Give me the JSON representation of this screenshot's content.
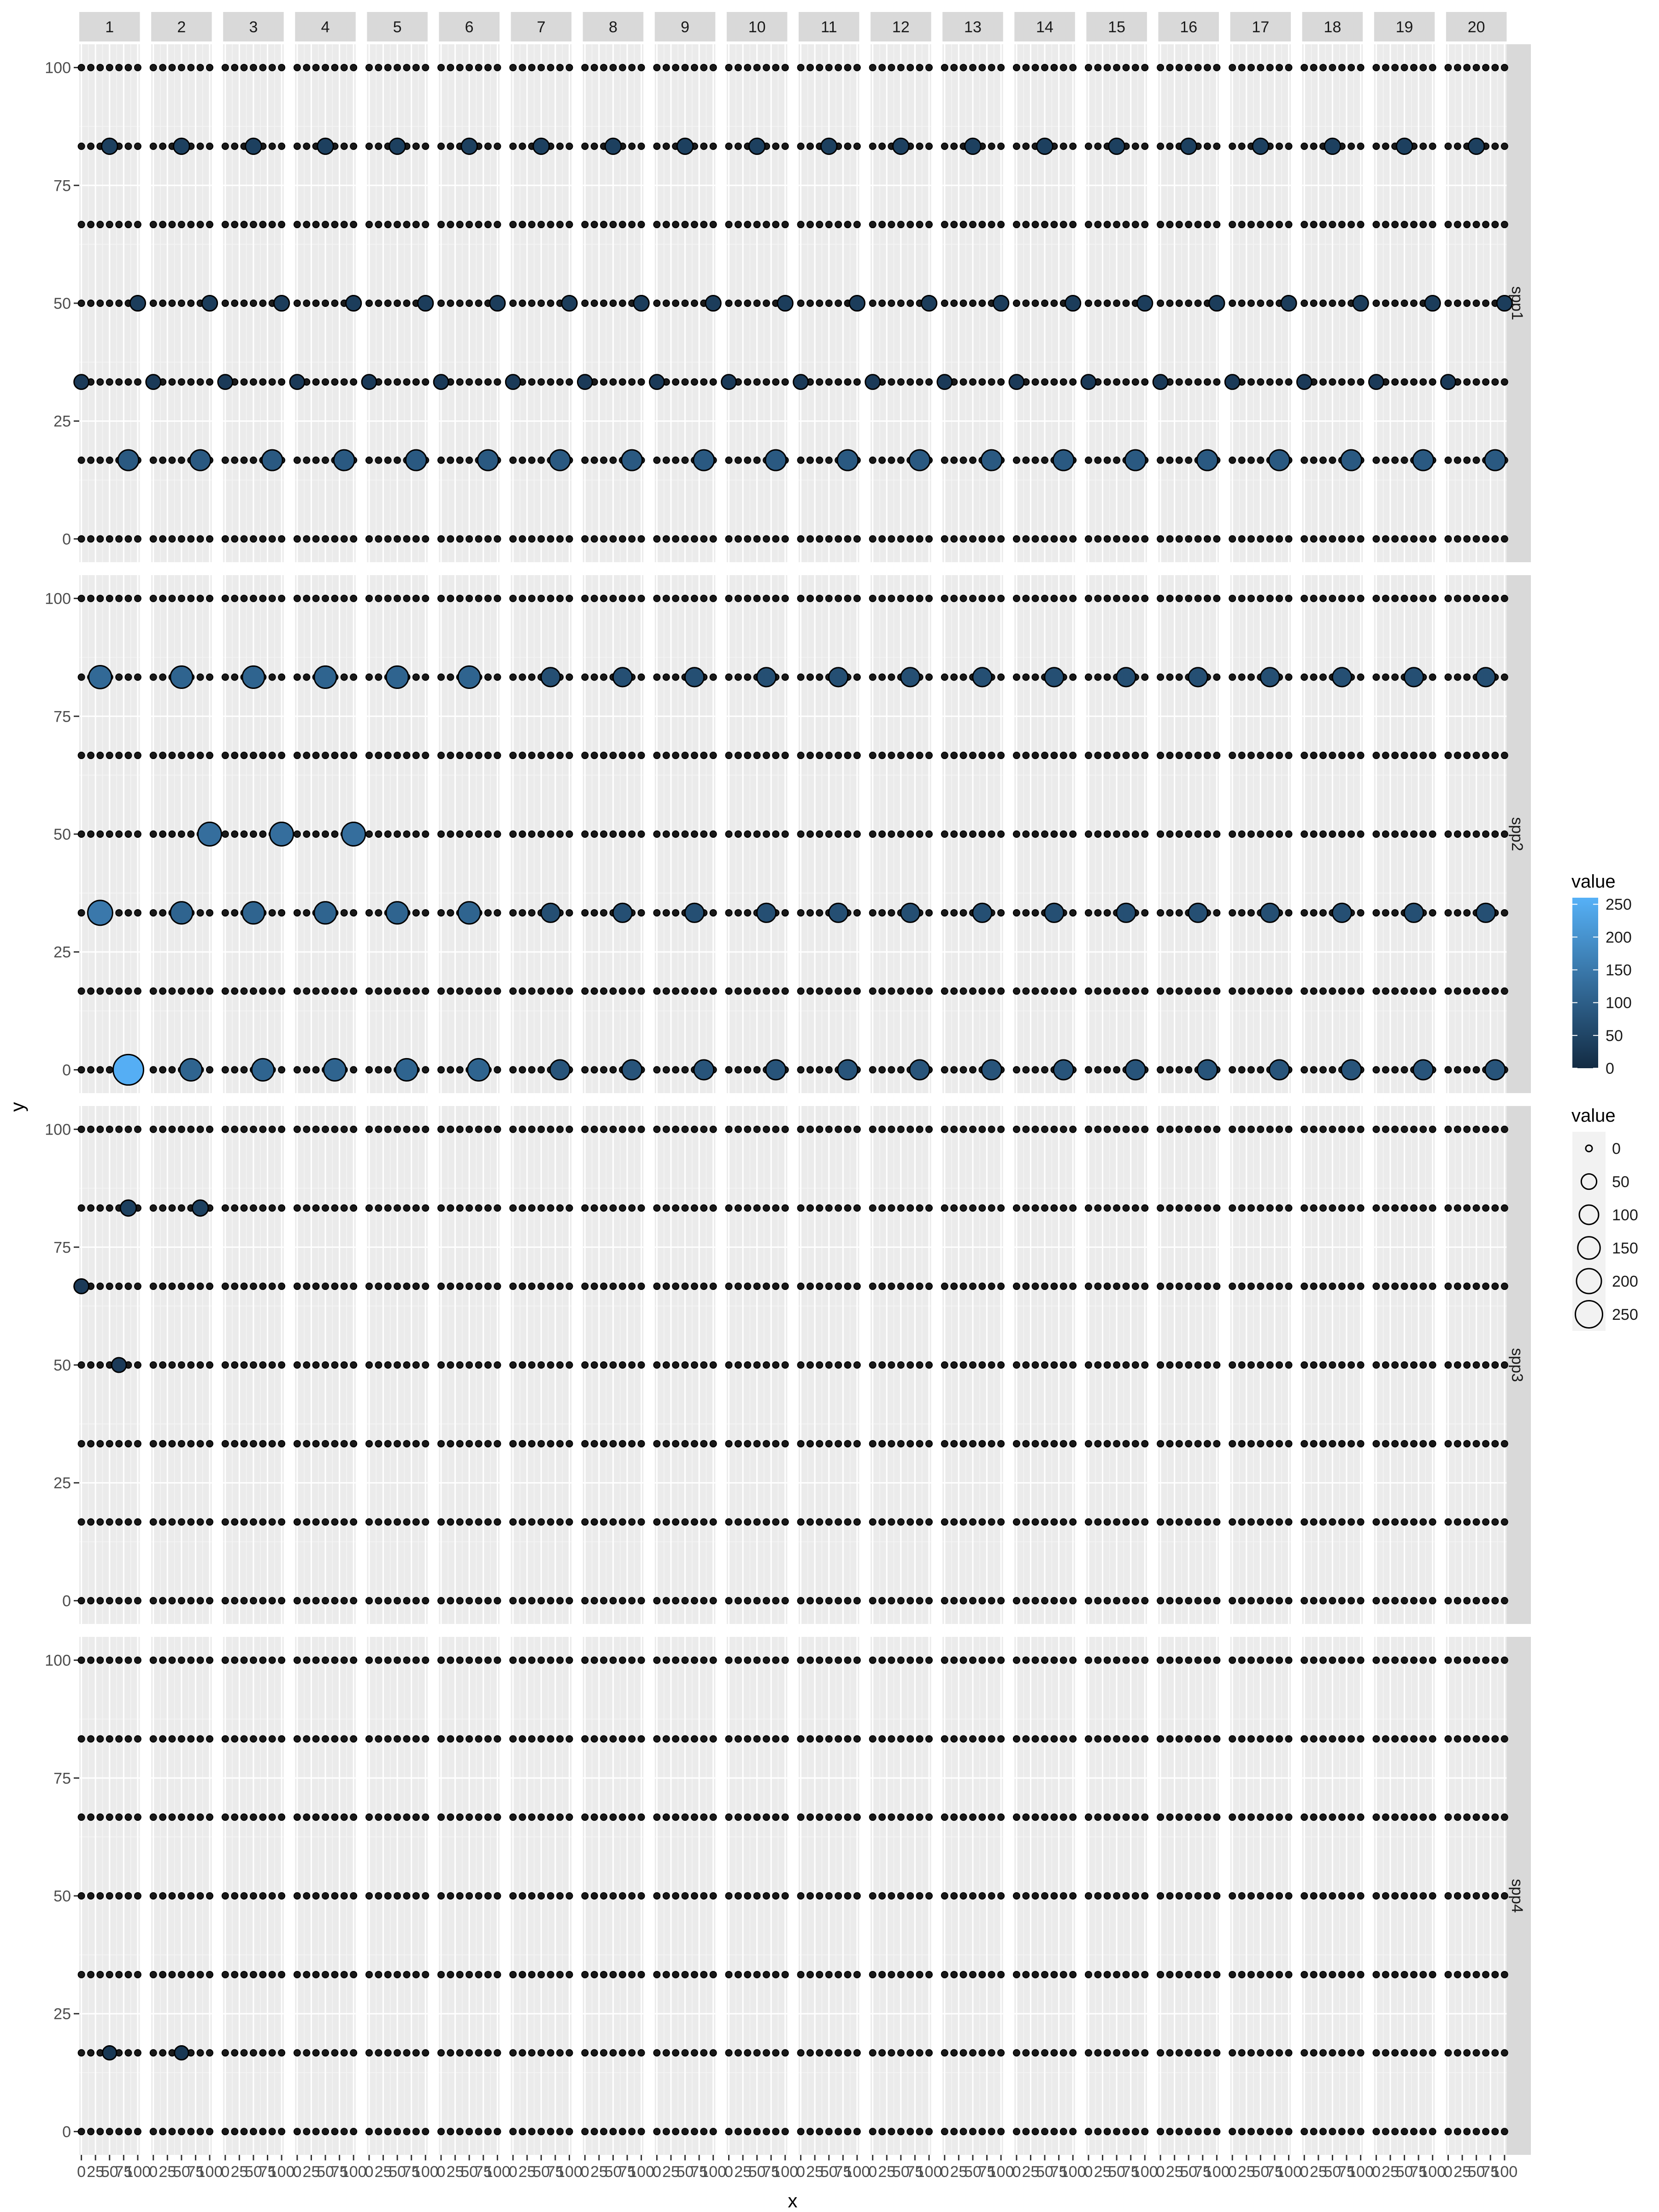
{
  "chart_data": {
    "type": "scatter",
    "facet_columns": [
      "1",
      "2",
      "3",
      "4",
      "5",
      "6",
      "7",
      "8",
      "9",
      "10",
      "11",
      "12",
      "13",
      "14",
      "15",
      "16",
      "17",
      "18",
      "19",
      "20"
    ],
    "facet_rows": [
      "spp1",
      "spp2",
      "spp3",
      "spp4"
    ],
    "xlabel": "x",
    "ylabel": "y",
    "x_ticks": [
      0,
      25,
      50,
      75,
      100
    ],
    "x_tick_labels": [
      "0",
      "25",
      "50",
      "75",
      "100"
    ],
    "xlim": [
      0,
      100
    ],
    "y_ticks": [
      0,
      25,
      50,
      75,
      100
    ],
    "y_tick_labels": [
      "0",
      "25",
      "50",
      "75",
      "100"
    ],
    "ylim": [
      0,
      100
    ],
    "grid": true,
    "point_x": [
      0,
      16.7,
      33.3,
      50,
      66.7,
      83.3,
      100
    ],
    "point_y": [
      0,
      16.7,
      33.3,
      50,
      66.7,
      83.3,
      100
    ],
    "point_fill": "#1a1a1a",
    "point_stroke": "#000000",
    "highlights": {
      "spp1": [
        {
          "x": 50,
          "y": 83.3,
          "value": 40,
          "facets": [
            1,
            2,
            3,
            4,
            5,
            6,
            7,
            8,
            9,
            10,
            11,
            12,
            13,
            14,
            15,
            16,
            17,
            18,
            19,
            20
          ]
        },
        {
          "x": 83.3,
          "y": 16.7,
          "value": 90,
          "facets": [
            1,
            2,
            3,
            4,
            5,
            6,
            7,
            8,
            9,
            10,
            11,
            12,
            13,
            14,
            15,
            16,
            17,
            18,
            19,
            20
          ]
        },
        {
          "x": 0,
          "y": 33.3,
          "value": 30,
          "facets": [
            1,
            2,
            3,
            4,
            5,
            6,
            7,
            8,
            9,
            10,
            11,
            12,
            13,
            14,
            15,
            16,
            17,
            18,
            19,
            20
          ]
        },
        {
          "x": 100,
          "y": 50,
          "value": 35,
          "facets": [
            1,
            2,
            3,
            4,
            5,
            6,
            7,
            8,
            9,
            10,
            11,
            12,
            13,
            14,
            15,
            16,
            17,
            18,
            19,
            20
          ]
        }
      ],
      "spp2": [
        {
          "x": 33.3,
          "y": 33.3,
          "value": 150,
          "facets": [
            1
          ]
        },
        {
          "x": 83.3,
          "y": 0,
          "value": 255,
          "facets": [
            1
          ]
        },
        {
          "x": 33.3,
          "y": 83.3,
          "value": 120,
          "facets": [
            1
          ]
        },
        {
          "x": 50,
          "y": 33.3,
          "value": 110,
          "facets": [
            2,
            3,
            4,
            5,
            6
          ]
        },
        {
          "x": 50,
          "y": 83.3,
          "value": 110,
          "facets": [
            2,
            3,
            4,
            5,
            6
          ]
        },
        {
          "x": 66.7,
          "y": 0,
          "value": 110,
          "facets": [
            2,
            3,
            4,
            5,
            6
          ]
        },
        {
          "x": 100,
          "y": 50,
          "value": 130,
          "facets": [
            2,
            3,
            4
          ]
        },
        {
          "x": 66.7,
          "y": 33.3,
          "value": 70,
          "facets": [
            7,
            8,
            9,
            10,
            11,
            12,
            13,
            14,
            15,
            16,
            17,
            18,
            19,
            20
          ]
        },
        {
          "x": 66.7,
          "y": 83.3,
          "value": 70,
          "facets": [
            7,
            8,
            9,
            10,
            11,
            12,
            13,
            14,
            15,
            16,
            17,
            18,
            19,
            20
          ]
        },
        {
          "x": 83.3,
          "y": 0,
          "value": 80,
          "facets": [
            7,
            8,
            9,
            10,
            11,
            12,
            13,
            14,
            15,
            16,
            17,
            18,
            19,
            20
          ]
        }
      ],
      "spp3": [
        {
          "x": 83.3,
          "y": 83.3,
          "value": 40,
          "facets": [
            1,
            2
          ]
        },
        {
          "x": 0,
          "y": 66.7,
          "value": 30,
          "facets": [
            1
          ]
        },
        {
          "x": 66.7,
          "y": 50,
          "value": 30,
          "facets": [
            1
          ]
        }
      ],
      "spp4": [
        {
          "x": 50,
          "y": 16.7,
          "value": 25,
          "facets": [
            1,
            2
          ]
        }
      ]
    },
    "legend_color": {
      "title": "value",
      "breaks": [
        0,
        50,
        100,
        150,
        200,
        250
      ],
      "labels": [
        "0",
        "50",
        "100",
        "150",
        "200",
        "250"
      ],
      "low_color": "#132B43",
      "high_color": "#56B1F7",
      "range": [
        0,
        260
      ]
    },
    "legend_size": {
      "title": "value",
      "breaks": [
        0,
        50,
        100,
        150,
        200,
        250
      ],
      "labels": [
        "0",
        "50",
        "100",
        "150",
        "200",
        "250"
      ]
    }
  },
  "colors": {
    "panel_background": "#ebebeb",
    "strip_background": "#d9d9d9",
    "grid_major": "#ffffff",
    "grid_minor": "#f5f5f5"
  }
}
